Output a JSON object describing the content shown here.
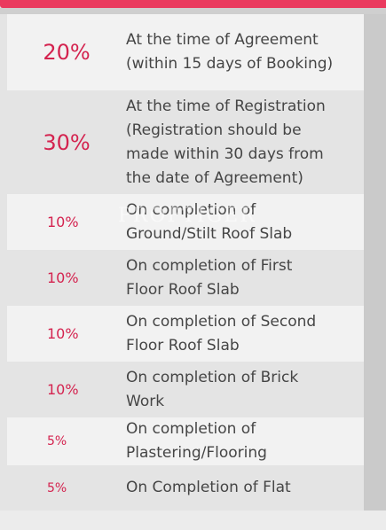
{
  "watermark": "PROPTIGER",
  "payment_plan": [
    {
      "percent": "20%",
      "lines": [
        "At the time of Agreement",
        "(within 15 days of Booking)"
      ]
    },
    {
      "percent": "30%",
      "lines": [
        "At the time of Registration",
        "(Registration should be",
        "made within 30 days from",
        "the date of Agreement)"
      ]
    },
    {
      "percent": "10%",
      "lines": [
        "On completion of",
        "Ground/Stilt Roof Slab"
      ]
    },
    {
      "percent": "10%",
      "lines": [
        "On completion of First",
        "Floor Roof Slab"
      ]
    },
    {
      "percent": "10%",
      "lines": [
        "On completion of Second",
        "Floor Roof Slab"
      ]
    },
    {
      "percent": "10%",
      "lines": [
        "On completion of Brick",
        "Work"
      ]
    },
    {
      "percent": "5%",
      "lines": [
        "On completion of",
        "Plastering/Flooring"
      ]
    },
    {
      "percent": "5%",
      "lines": [
        "On Completion of Flat"
      ]
    }
  ]
}
